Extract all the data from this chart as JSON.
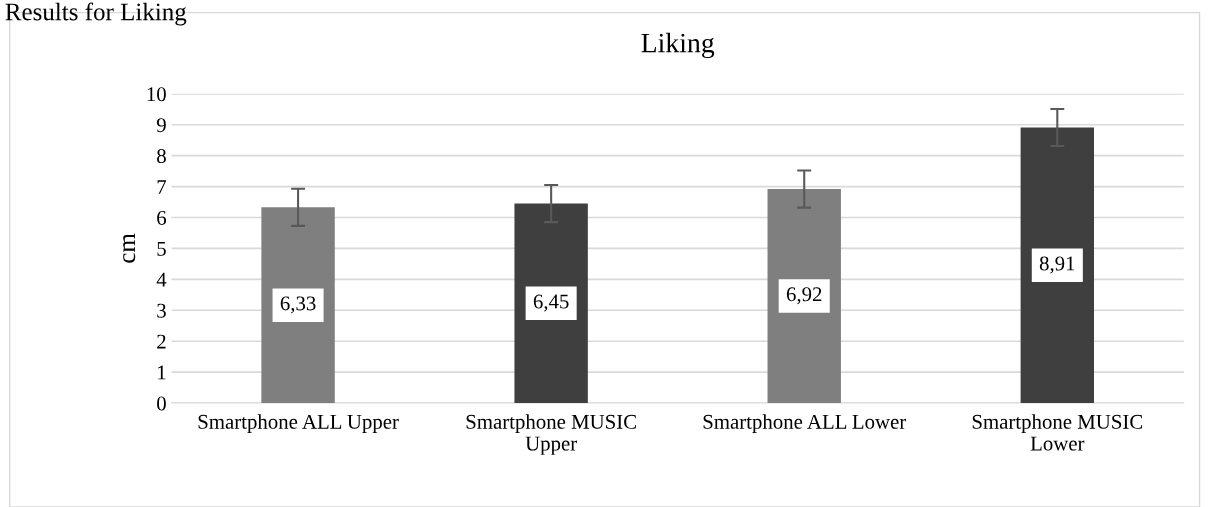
{
  "chart_data": {
    "type": "bar",
    "title": "Liking",
    "ylabel": "cm",
    "annotations": [
      "Results for Liking"
    ],
    "categories": [
      "Smartphone ALL Upper",
      "Smartphone MUSIC\nUpper",
      "Smartphone ALL Lower",
      "Smartphone MUSIC\nLower"
    ],
    "values": [
      6.33,
      6.45,
      6.92,
      8.91
    ],
    "colors": [
      "#7f7f7f",
      "#3f3f3f",
      "#7f7f7f",
      "#3f3f3f"
    ],
    "errors": [
      0.6,
      0.6,
      0.6,
      0.6
    ],
    "value_labels": [
      "6,33",
      "6,45",
      "6,92",
      "8,91"
    ],
    "ylim": [
      0,
      10
    ],
    "yticks": [
      0,
      1,
      2,
      3,
      4,
      5,
      6,
      7,
      8,
      9,
      10
    ],
    "grid": "y",
    "legend": false
  }
}
